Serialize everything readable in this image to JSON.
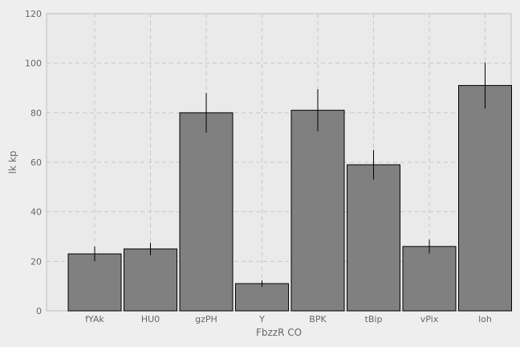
{
  "chart_data": {
    "type": "bar",
    "title": "",
    "xlabel": "FbzzR CO",
    "ylabel": "lk kp",
    "categories": [
      "fYAk",
      "HU0",
      "gzPH",
      "Y",
      "BPK",
      "tBip",
      "vPix",
      "loh"
    ],
    "values": [
      23,
      25,
      80,
      11,
      81,
      59,
      26,
      91
    ],
    "errors": [
      3,
      2.5,
      8,
      1.3,
      8.5,
      6,
      2.8,
      9.3
    ],
    "ylim": [
      0,
      120
    ],
    "yticks": [
      0,
      20,
      40,
      60,
      80,
      100,
      120
    ],
    "grid": true,
    "colors": {
      "bar": "#808080",
      "bar_edge": "#000000",
      "error": "#000000",
      "plot_bg": "#eaeaea",
      "grid": "#c8c8c8"
    }
  }
}
